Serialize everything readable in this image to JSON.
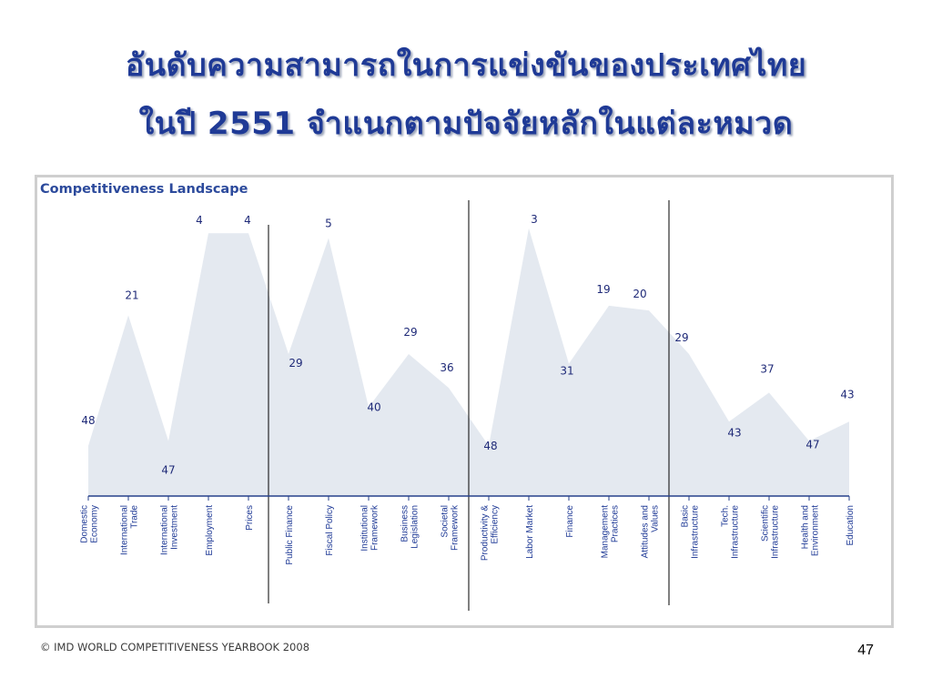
{
  "slide": {
    "title_line1": "อันดับความสามารถในการแข่งขันของประเทศไทย",
    "title_line2": "ในปี 2551  จำแนกตามปัจจัยหลักในแต่ละหมวด",
    "source": "© IMD WORLD COMPETITIVENESS YEARBOOK 2008",
    "page_number": "47"
  },
  "chart_data": {
    "type": "area",
    "title": "Competitiveness Landscape",
    "categories": [
      [
        "Domestic",
        "Economy"
      ],
      [
        "International",
        "Trade"
      ],
      [
        "International",
        "Investment"
      ],
      [
        "Employment"
      ],
      [
        "Prices"
      ],
      [
        "Public Finance"
      ],
      [
        "Fiscal Policy"
      ],
      [
        "Institutional",
        "Framework"
      ],
      [
        "Business",
        "Legislation"
      ],
      [
        "Societal",
        "Framework"
      ],
      [
        "Productivity &",
        "Efficiency"
      ],
      [
        "Labor Market"
      ],
      [
        "Finance"
      ],
      [
        "Management",
        "Practices"
      ],
      [
        "Attitudes and",
        "Values"
      ],
      [
        "Basic",
        "Infrastructure"
      ],
      [
        "Tech.",
        "Infrastructure"
      ],
      [
        "Scientific",
        "Infrastructure"
      ],
      [
        "Health and",
        "Environment"
      ],
      [
        "Education"
      ]
    ],
    "values": [
      48,
      21,
      47,
      4,
      4,
      29,
      5,
      40,
      29,
      36,
      48,
      3,
      31,
      19,
      20,
      29,
      43,
      37,
      47,
      43
    ],
    "ylim": [
      55,
      0
    ],
    "grid": false,
    "group_dividers_after_index": [
      4,
      9,
      14
    ],
    "colors": {
      "fill": "#e4e9f0",
      "labels": "#1f2a78",
      "title": "#2c4a9c"
    }
  }
}
